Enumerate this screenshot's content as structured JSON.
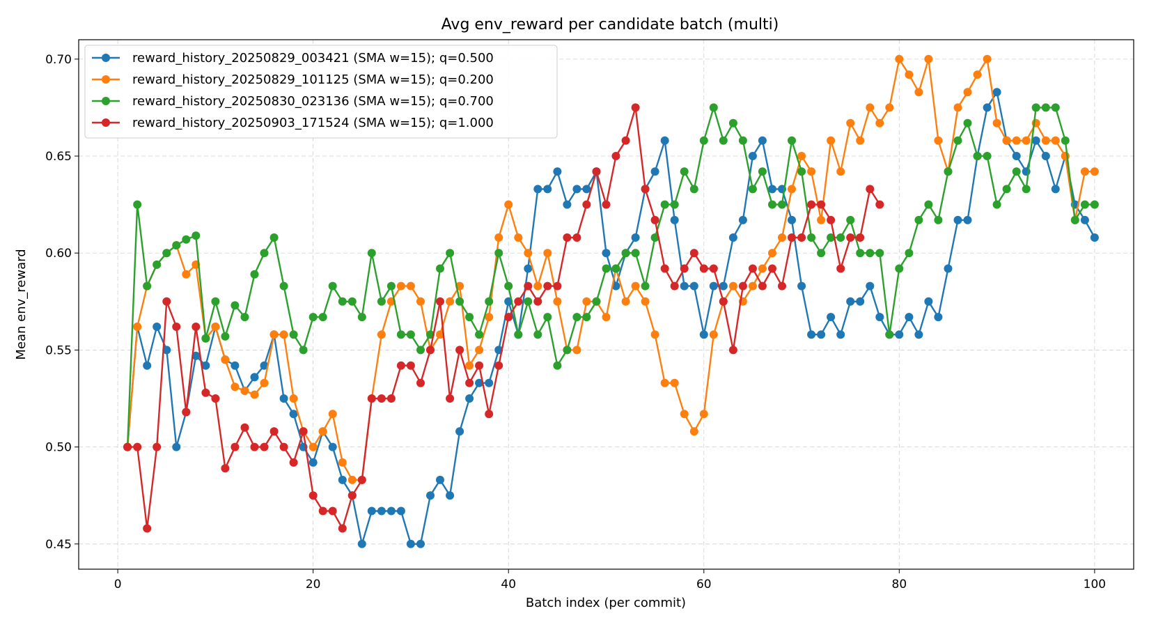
{
  "chart_data": {
    "type": "line",
    "title": "Avg env_reward per candidate batch (multi)",
    "xlabel": "Batch index (per commit)",
    "ylabel": "Mean env_reward",
    "xlim": [
      -4,
      104
    ],
    "ylim": [
      0.437,
      0.71
    ],
    "xticks": [
      0,
      20,
      40,
      60,
      80,
      100
    ],
    "xtick_labels": [
      "0",
      "20",
      "40",
      "60",
      "80",
      "100"
    ],
    "yticks": [
      0.45,
      0.5,
      0.55,
      0.6,
      0.65,
      0.7
    ],
    "ytick_labels": [
      "0.45",
      "0.50",
      "0.55",
      "0.60",
      "0.65",
      "0.70"
    ],
    "grid": true,
    "legend_position": "top-left",
    "series": [
      {
        "name": "reward_history_20250829_003421 (SMA w=15); q=0.500",
        "color": "#1f77b4",
        "x": [
          1,
          2,
          3,
          4,
          5,
          6,
          7,
          8,
          9,
          10,
          11,
          12,
          13,
          14,
          15,
          16,
          17,
          18,
          19,
          20,
          21,
          22,
          23,
          24,
          25,
          26,
          27,
          28,
          29,
          30,
          31,
          32,
          33,
          34,
          35,
          36,
          37,
          38,
          39,
          40,
          41,
          42,
          43,
          44,
          45,
          46,
          47,
          48,
          49,
          50,
          51,
          52,
          53,
          54,
          55,
          56,
          57,
          58,
          59,
          60,
          61,
          62,
          63,
          64,
          65,
          66,
          67,
          68,
          69,
          70,
          71,
          72,
          73,
          74,
          75,
          76,
          77,
          78,
          79,
          80,
          81,
          82,
          83,
          84,
          85,
          86,
          87,
          88,
          89,
          90,
          91,
          92,
          93,
          94,
          95,
          96,
          97,
          98,
          99,
          100
        ],
        "y": [
          0.5,
          0.562,
          0.542,
          0.562,
          0.55,
          0.5,
          0.518,
          0.547,
          0.542,
          0.562,
          0.545,
          0.542,
          0.529,
          0.536,
          0.542,
          0.558,
          0.525,
          0.517,
          0.5,
          0.492,
          0.508,
          0.5,
          0.483,
          0.475,
          0.45,
          0.467,
          0.467,
          0.467,
          0.467,
          0.45,
          0.45,
          0.475,
          0.483,
          0.475,
          0.508,
          0.525,
          0.533,
          0.533,
          0.55,
          0.575,
          0.558,
          0.592,
          0.633,
          0.633,
          0.642,
          0.625,
          0.633,
          0.633,
          0.642,
          0.6,
          0.583,
          0.6,
          0.608,
          0.633,
          0.642,
          0.658,
          0.617,
          0.583,
          0.583,
          0.558,
          0.583,
          0.583,
          0.608,
          0.617,
          0.65,
          0.658,
          0.633,
          0.633,
          0.617,
          0.583,
          0.558,
          0.558,
          0.567,
          0.558,
          0.575,
          0.575,
          0.583,
          0.567,
          0.558,
          0.558,
          0.567,
          0.558,
          0.575,
          0.567,
          0.592,
          0.617,
          0.617,
          0.65,
          0.675,
          0.683,
          0.658,
          0.65,
          0.642,
          0.658,
          0.65,
          0.633,
          0.65,
          0.625,
          0.617,
          0.608
        ]
      },
      {
        "name": "reward_history_20250829_101125 (SMA w=15); q=0.200",
        "color": "#ff7f0e",
        "x": [
          1,
          2,
          3,
          4,
          5,
          6,
          7,
          8,
          9,
          10,
          11,
          12,
          13,
          14,
          15,
          16,
          17,
          18,
          19,
          20,
          21,
          22,
          23,
          24,
          25,
          26,
          27,
          28,
          29,
          30,
          31,
          32,
          33,
          34,
          35,
          36,
          37,
          38,
          39,
          40,
          41,
          42,
          43,
          44,
          45,
          46,
          47,
          48,
          49,
          50,
          51,
          52,
          53,
          54,
          55,
          56,
          57,
          58,
          59,
          60,
          61,
          62,
          63,
          64,
          65,
          66,
          67,
          68,
          69,
          70,
          71,
          72,
          73,
          74,
          75,
          76,
          77,
          78,
          79,
          80,
          81,
          82,
          83,
          84,
          85,
          86,
          87,
          88,
          89,
          90,
          91,
          92,
          93,
          94,
          95,
          96,
          97,
          98,
          99,
          100
        ],
        "y": [
          0.5,
          0.562,
          0.583,
          0.594,
          0.6,
          0.604,
          0.589,
          0.594,
          0.556,
          0.562,
          0.545,
          0.531,
          0.529,
          0.527,
          0.533,
          0.558,
          0.558,
          0.525,
          0.508,
          0.5,
          0.508,
          0.517,
          0.492,
          0.483,
          0.483,
          0.525,
          0.558,
          0.575,
          0.583,
          0.583,
          0.575,
          0.55,
          0.558,
          0.575,
          0.583,
          0.542,
          0.55,
          0.567,
          0.608,
          0.625,
          0.608,
          0.6,
          0.583,
          0.6,
          0.575,
          0.55,
          0.55,
          0.575,
          0.575,
          0.567,
          0.592,
          0.575,
          0.583,
          0.575,
          0.558,
          0.533,
          0.533,
          0.517,
          0.508,
          0.517,
          0.558,
          0.575,
          0.583,
          0.575,
          0.583,
          0.592,
          0.6,
          0.608,
          0.633,
          0.65,
          0.642,
          0.617,
          0.658,
          0.642,
          0.667,
          0.658,
          0.675,
          0.667,
          0.675,
          0.7,
          0.692,
          0.683,
          0.7,
          0.658,
          0.642,
          0.675,
          0.683,
          0.692,
          0.7,
          0.667,
          0.658,
          0.658,
          0.658,
          0.667,
          0.658,
          0.658,
          0.65,
          0.617,
          0.642,
          0.642
        ]
      },
      {
        "name": "reward_history_20250830_023136 (SMA w=15); q=0.700",
        "color": "#2ca02c",
        "x": [
          1,
          2,
          3,
          4,
          5,
          6,
          7,
          8,
          9,
          10,
          11,
          12,
          13,
          14,
          15,
          16,
          17,
          18,
          19,
          20,
          21,
          22,
          23,
          24,
          25,
          26,
          27,
          28,
          29,
          30,
          31,
          32,
          33,
          34,
          35,
          36,
          37,
          38,
          39,
          40,
          41,
          42,
          43,
          44,
          45,
          46,
          47,
          48,
          49,
          50,
          51,
          52,
          53,
          54,
          55,
          56,
          57,
          58,
          59,
          60,
          61,
          62,
          63,
          64,
          65,
          66,
          67,
          68,
          69,
          70,
          71,
          72,
          73,
          74,
          75,
          76,
          77,
          78,
          79,
          80,
          81,
          82,
          83,
          84,
          85,
          86,
          87,
          88,
          89,
          90,
          91,
          92,
          93,
          94,
          95,
          96,
          97,
          98,
          99,
          100
        ],
        "y": [
          0.5,
          0.625,
          0.583,
          0.594,
          0.6,
          0.604,
          0.607,
          0.609,
          0.556,
          0.575,
          0.557,
          0.573,
          0.567,
          0.589,
          0.6,
          0.608,
          0.583,
          0.558,
          0.55,
          0.567,
          0.567,
          0.583,
          0.575,
          0.575,
          0.567,
          0.6,
          0.575,
          0.583,
          0.558,
          0.558,
          0.55,
          0.558,
          0.592,
          0.6,
          0.575,
          0.567,
          0.558,
          0.575,
          0.6,
          0.583,
          0.558,
          0.575,
          0.558,
          0.567,
          0.542,
          0.55,
          0.567,
          0.567,
          0.575,
          0.592,
          0.592,
          0.6,
          0.6,
          0.583,
          0.608,
          0.625,
          0.625,
          0.642,
          0.633,
          0.658,
          0.675,
          0.658,
          0.667,
          0.658,
          0.633,
          0.642,
          0.625,
          0.625,
          0.658,
          0.642,
          0.608,
          0.6,
          0.608,
          0.608,
          0.617,
          0.6,
          0.6,
          0.6,
          0.558,
          0.592,
          0.6,
          0.617,
          0.625,
          0.617,
          0.642,
          0.658,
          0.667,
          0.65,
          0.65,
          0.625,
          0.633,
          0.642,
          0.633,
          0.675,
          0.675,
          0.675,
          0.658,
          0.617,
          0.625,
          0.625
        ]
      },
      {
        "name": "reward_history_20250903_171524 (SMA w=15); q=1.000",
        "color": "#d62728",
        "x": [
          1,
          2,
          3,
          4,
          5,
          6,
          7,
          8,
          9,
          10,
          11,
          12,
          13,
          14,
          15,
          16,
          17,
          18,
          19,
          20,
          21,
          22,
          23,
          24,
          25,
          26,
          27,
          28,
          29,
          30,
          31,
          32,
          33,
          34,
          35,
          36,
          37,
          38,
          39,
          40,
          41,
          42,
          43,
          44,
          45,
          46,
          47,
          48,
          49,
          50,
          51,
          52,
          53,
          54,
          55,
          56,
          57,
          58,
          59,
          60,
          61,
          62,
          63,
          64,
          65,
          66,
          67,
          68,
          69,
          70,
          71,
          72,
          73,
          74,
          75,
          76,
          77,
          78
        ],
        "y": [
          0.5,
          0.5,
          0.458,
          0.5,
          0.575,
          0.562,
          0.518,
          0.562,
          0.528,
          0.525,
          0.489,
          0.5,
          0.51,
          0.5,
          0.5,
          0.508,
          0.5,
          0.492,
          0.508,
          0.475,
          0.467,
          0.467,
          0.458,
          0.475,
          0.483,
          0.525,
          0.525,
          0.525,
          0.542,
          0.542,
          0.533,
          0.55,
          0.575,
          0.525,
          0.55,
          0.533,
          0.542,
          0.517,
          0.542,
          0.567,
          0.575,
          0.583,
          0.575,
          0.583,
          0.583,
          0.608,
          0.608,
          0.625,
          0.642,
          0.625,
          0.65,
          0.658,
          0.675,
          0.633,
          0.617,
          0.592,
          0.583,
          0.592,
          0.6,
          0.592,
          0.592,
          0.575,
          0.55,
          0.583,
          0.592,
          0.583,
          0.592,
          0.583,
          0.608,
          0.608,
          0.625,
          0.625,
          0.617,
          0.592,
          0.608,
          0.608,
          0.633,
          0.625
        ]
      }
    ]
  }
}
